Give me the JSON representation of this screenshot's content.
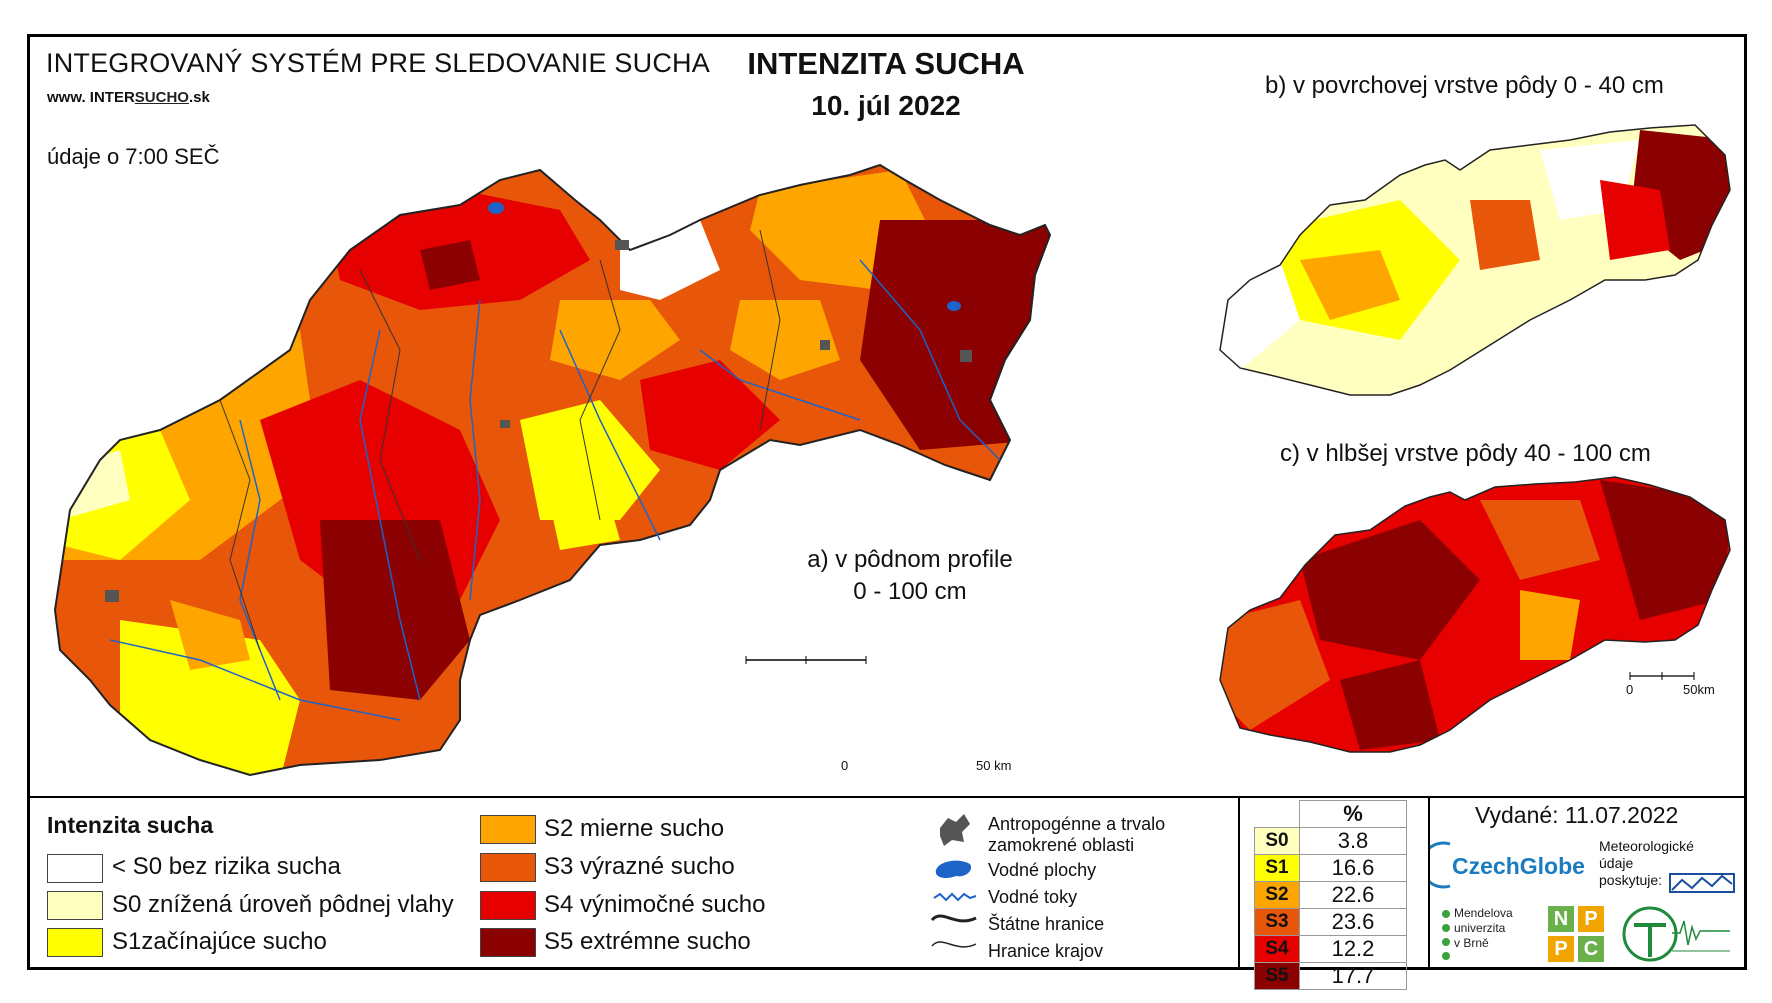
{
  "header": {
    "system_title": "INTEGROVANÝ SYSTÉM PRE SLEDOVANIE SUCHA",
    "url_prefix": "www.",
    "url_inter": "INTER",
    "url_sucho": "SUCHO",
    "url_suffix": ".sk",
    "data_time": "údaje o 7:00 SEČ",
    "title": "INTENZITA SUCHA",
    "date": "10. júl 2022"
  },
  "panels": {
    "a_line1": "a) v pôdnom profile",
    "a_line2": "0 - 100 cm",
    "b": "b) v povrchovej vrstve pôdy 0 - 40 cm",
    "c": "c) v hlbšej vrstve pôdy 40 - 100 cm"
  },
  "scale": {
    "main_zero": "0",
    "main_end": "50 km",
    "small_zero": "0",
    "small_end": "50km"
  },
  "legend": {
    "title": "Intenzita sucha",
    "classes": [
      {
        "label": "< S0 bez rizika sucha",
        "color": "#ffffff"
      },
      {
        "label": "S0 znížená úroveň pôdnej vlahy",
        "color": "#ffffc0"
      },
      {
        "label": "S1začínajúce sucho",
        "color": "#ffff00"
      },
      {
        "label": "S2 mierne sucho",
        "color": "#ffa500"
      },
      {
        "label": "S3 výrazné sucho",
        "color": "#e8560a"
      },
      {
        "label": "S4 výnimočné sucho",
        "color": "#e60000"
      },
      {
        "label": "S5 extrémne sucho",
        "color": "#8b0000"
      }
    ],
    "symbols": [
      {
        "label_line1": "Antropogénne a trvalo",
        "label_line2": "zamokrené oblasti"
      },
      {
        "label_line1": "Vodné plochy"
      },
      {
        "label_line1": "Vodné toky"
      },
      {
        "label_line1": "Štátne hranice"
      },
      {
        "label_line1": "Hranice krajov"
      }
    ]
  },
  "stats": {
    "header": "%",
    "rows": [
      {
        "cls": "S0",
        "value": "3.8",
        "color": "#ffffc0"
      },
      {
        "cls": "S1",
        "value": "16.6",
        "color": "#ffff00"
      },
      {
        "cls": "S2",
        "value": "22.6",
        "color": "#ffa500"
      },
      {
        "cls": "S3",
        "value": "23.6",
        "color": "#e8560a"
      },
      {
        "cls": "S4",
        "value": "12.2",
        "color": "#e60000"
      },
      {
        "cls": "S5",
        "value": "17.7",
        "color": "#8b0000"
      }
    ]
  },
  "credits": {
    "issued": "Vydané: 11.07.2022",
    "czechglobe": "CzechGlobe",
    "meteo_line1": "Meteorologické",
    "meteo_line2": "údaje",
    "meteo_line3": "poskytuje:",
    "mendel_line1": "Mendelova",
    "mendel_line2": "univerzita",
    "mendel_line3": "v Brně",
    "nppc": [
      "N",
      "P",
      "P",
      "C"
    ]
  }
}
